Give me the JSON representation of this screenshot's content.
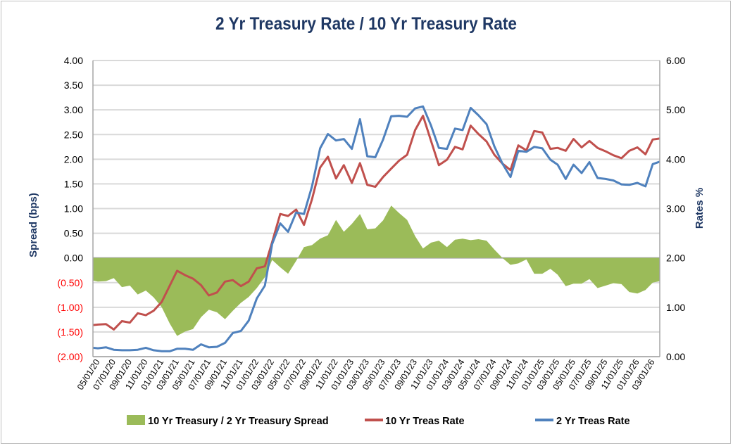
{
  "chart_data": {
    "type": "line",
    "title": "2 Yr Treasury Rate / 10 Yr Treasury Rate",
    "y_left_label": "Spread (bps)",
    "y_right_label": "Rates %",
    "y_left_lim": [
      -2,
      4
    ],
    "y_right_lim": [
      0,
      6
    ],
    "y_left_ticks": [
      "4.00",
      "3.50",
      "3.00",
      "2.50",
      "2.00",
      "1.50",
      "1.00",
      "0.50",
      "0.00",
      "(0.50)",
      "(1.00)",
      "(1.50)",
      "(2.00)"
    ],
    "y_left_tick_values": [
      4,
      3.5,
      3,
      2.5,
      2,
      1.5,
      1,
      0.5,
      0,
      -0.5,
      -1,
      -1.5,
      -2
    ],
    "y_right_ticks": [
      "6.00",
      "5.00",
      "4.00",
      "3.00",
      "2.00",
      "1.00",
      "0.00"
    ],
    "y_right_tick_values": [
      6,
      5,
      4,
      3,
      2,
      1,
      0
    ],
    "x_lim": [
      "2020-04-12",
      "2026-03-28"
    ],
    "x_ticks": [
      "05/01/20",
      "07/01/20",
      "09/01/20",
      "11/01/20",
      "01/01/21",
      "03/01/21",
      "05/01/21",
      "07/01/21",
      "09/01/21",
      "11/01/21",
      "01/01/22",
      "03/01/22",
      "05/01/22",
      "07/01/22",
      "09/01/22",
      "11/01/22",
      "01/01/23",
      "03/01/23",
      "05/01/23",
      "07/01/23",
      "09/01/23",
      "11/01/23",
      "01/01/24",
      "03/01/24",
      "05/01/24",
      "07/01/24",
      "09/01/24",
      "11/01/24",
      "01/01/25",
      "03/01/25",
      "05/01/25",
      "07/01/25",
      "09/01/25",
      "11/01/25",
      "01/01/26",
      "03/01/26"
    ],
    "grid": true,
    "legend_position": "bottom",
    "colors": {
      "spread": "#9bbb59",
      "ten_yr": "#c0504d",
      "two_yr": "#4f81bd",
      "title": "#1f3864",
      "negative_tick": "#ff0000"
    },
    "dates": [
      "2020-04-12",
      "2020-05-01",
      "2020-06-01",
      "2020-07-01",
      "2020-08-01",
      "2020-09-01",
      "2020-10-01",
      "2020-11-01",
      "2020-12-01",
      "2021-01-01",
      "2021-02-01",
      "2021-03-01",
      "2021-04-01",
      "2021-05-01",
      "2021-06-01",
      "2021-07-01",
      "2021-08-01",
      "2021-09-01",
      "2021-10-01",
      "2021-11-01",
      "2021-12-01",
      "2022-01-01",
      "2022-02-01",
      "2022-03-01",
      "2022-04-01",
      "2022-05-01",
      "2022-06-01",
      "2022-07-01",
      "2022-08-01",
      "2022-09-01",
      "2022-10-01",
      "2022-11-01",
      "2022-12-01",
      "2023-01-01",
      "2023-02-01",
      "2023-03-01",
      "2023-04-01",
      "2023-05-01",
      "2023-06-01",
      "2023-07-01",
      "2023-08-01",
      "2023-09-01",
      "2023-10-01",
      "2023-11-01",
      "2023-12-01",
      "2024-01-01",
      "2024-02-01",
      "2024-03-01",
      "2024-04-01",
      "2024-05-01",
      "2024-06-01",
      "2024-07-01",
      "2024-08-01",
      "2024-09-01",
      "2024-10-01",
      "2024-11-01",
      "2024-12-01",
      "2025-01-01",
      "2025-02-01",
      "2025-03-01",
      "2025-04-01",
      "2025-05-01",
      "2025-06-01",
      "2025-07-01",
      "2025-08-01",
      "2025-09-01",
      "2025-10-01",
      "2025-11-01",
      "2025-12-01",
      "2026-01-01",
      "2026-02-01",
      "2026-03-01",
      "2026-03-28"
    ],
    "series": [
      {
        "name": "10 Yr Treasury / 2 Yr Treasury Spread",
        "axis": "left",
        "kind": "area",
        "values": [
          -0.46,
          -0.48,
          -0.47,
          -0.41,
          -0.59,
          -0.56,
          -0.74,
          -0.66,
          -0.8,
          -1.0,
          -1.33,
          -1.58,
          -1.49,
          -1.44,
          -1.2,
          -1.05,
          -1.1,
          -1.24,
          -1.07,
          -0.91,
          -0.79,
          -0.61,
          -0.39,
          -0.04,
          -0.19,
          -0.32,
          -0.06,
          0.22,
          0.26,
          0.39,
          0.46,
          0.77,
          0.53,
          0.69,
          0.89,
          0.58,
          0.6,
          0.76,
          1.06,
          0.91,
          0.77,
          0.44,
          0.19,
          0.31,
          0.35,
          0.22,
          0.37,
          0.39,
          0.36,
          0.38,
          0.35,
          0.17,
          0.0,
          -0.14,
          -0.11,
          -0.03,
          -0.32,
          -0.32,
          -0.22,
          -0.34,
          -0.57,
          -0.52,
          -0.52,
          -0.43,
          -0.61,
          -0.56,
          -0.51,
          -0.53,
          -0.69,
          -0.72,
          -0.65,
          -0.5,
          -0.47
        ]
      },
      {
        "name": "10 Yr Treas Rate",
        "axis": "right",
        "kind": "line",
        "values": [
          0.64,
          0.65,
          0.66,
          0.55,
          0.72,
          0.69,
          0.88,
          0.84,
          0.93,
          1.11,
          1.44,
          1.74,
          1.65,
          1.58,
          1.45,
          1.24,
          1.3,
          1.52,
          1.55,
          1.43,
          1.52,
          1.79,
          1.83,
          2.32,
          2.89,
          2.85,
          2.98,
          2.67,
          3.19,
          3.83,
          4.05,
          3.61,
          3.88,
          3.52,
          3.92,
          3.48,
          3.44,
          3.64,
          3.81,
          3.97,
          4.09,
          4.59,
          4.88,
          4.37,
          3.88,
          3.99,
          4.25,
          4.2,
          4.68,
          4.51,
          4.36,
          4.09,
          3.91,
          3.78,
          4.28,
          4.18,
          4.57,
          4.54,
          4.21,
          4.23,
          4.17,
          4.41,
          4.24,
          4.37,
          4.23,
          4.16,
          4.08,
          4.02,
          4.17,
          4.24,
          4.1,
          4.4,
          4.42
        ]
      },
      {
        "name": "2 Yr Treas Rate",
        "axis": "right",
        "kind": "line",
        "values": [
          0.18,
          0.17,
          0.19,
          0.14,
          0.13,
          0.13,
          0.14,
          0.18,
          0.13,
          0.11,
          0.11,
          0.16,
          0.16,
          0.14,
          0.25,
          0.19,
          0.2,
          0.28,
          0.48,
          0.52,
          0.73,
          1.18,
          1.44,
          2.28,
          2.7,
          2.53,
          2.92,
          2.89,
          3.45,
          4.22,
          4.51,
          4.38,
          4.41,
          4.21,
          4.81,
          4.06,
          4.04,
          4.4,
          4.87,
          4.88,
          4.86,
          5.03,
          5.07,
          4.68,
          4.23,
          4.21,
          4.62,
          4.59,
          5.04,
          4.89,
          4.71,
          4.26,
          3.91,
          3.64,
          4.17,
          4.15,
          4.25,
          4.22,
          3.99,
          3.89,
          3.6,
          3.89,
          3.72,
          3.94,
          3.62,
          3.6,
          3.57,
          3.49,
          3.48,
          3.52,
          3.45,
          3.9,
          3.95
        ]
      }
    ]
  }
}
